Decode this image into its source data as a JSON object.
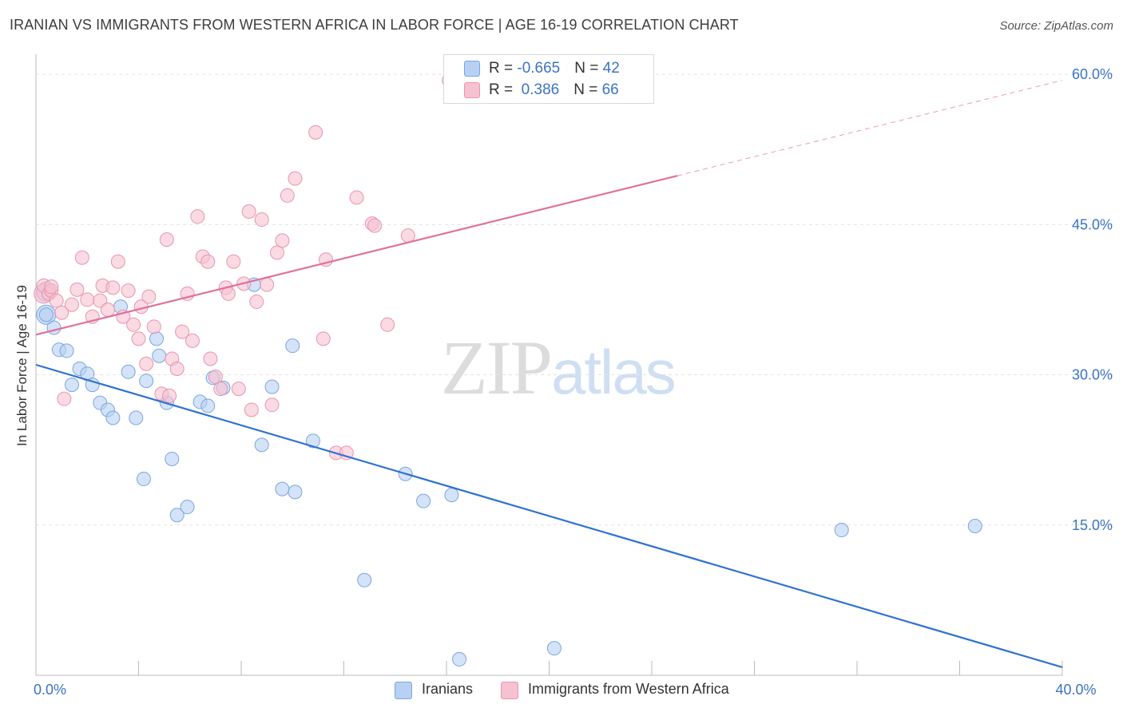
{
  "title": "IRANIAN VS IMMIGRANTS FROM WESTERN AFRICA IN LABOR FORCE | AGE 16-19 CORRELATION CHART",
  "source": "Source: ZipAtlas.com",
  "watermark": {
    "zip": "ZIP",
    "atlas": "atlas"
  },
  "stats": {
    "iranians": {
      "r_label": "R = ",
      "r_value": "-0.665",
      "n_label": "N = ",
      "n_value": "42"
    },
    "western_africa": {
      "r_label": "R = ",
      "r_value": " 0.386",
      "n_label": "N = ",
      "n_value": "66"
    }
  },
  "colors": {
    "blue_fill": "#b8d0f2",
    "blue_stroke": "#7aa6e0",
    "blue_line": "#2f72d2",
    "pink_fill": "#f6c1d1",
    "pink_stroke": "#e896b0",
    "pink_line": "#e0719a",
    "tick_label": "#3b73c4",
    "grid": "#e3e3e3"
  },
  "chart_data": {
    "type": "scatter",
    "ylabel": "In Labor Force | Age 16-19",
    "xlabel": "",
    "xlim": [
      0,
      40
    ],
    "ylim": [
      0,
      62
    ],
    "x_tick_labels": {
      "0": "0.0%",
      "40": "40.0%"
    },
    "x_minor_ticks": [
      0,
      4,
      8,
      12,
      16,
      20,
      24,
      28,
      32,
      36,
      40
    ],
    "y_ticks": [
      {
        "value": 15,
        "label": "15.0%"
      },
      {
        "value": 30,
        "label": "30.0%"
      },
      {
        "value": 45,
        "label": "45.0%"
      },
      {
        "value": 60,
        "label": "60.0%"
      }
    ],
    "grid": true,
    "legend_position": "bottom-center",
    "series": [
      {
        "name": "Iranians",
        "color": "blue",
        "points": [
          [
            0.4,
            36.0
          ],
          [
            0.7,
            34.7
          ],
          [
            0.9,
            32.5
          ],
          [
            1.2,
            32.4
          ],
          [
            1.4,
            29.0
          ],
          [
            1.7,
            30.6
          ],
          [
            2.0,
            30.1
          ],
          [
            2.2,
            29.0
          ],
          [
            2.5,
            27.2
          ],
          [
            2.8,
            26.5
          ],
          [
            3.0,
            25.7
          ],
          [
            3.3,
            36.8
          ],
          [
            3.6,
            30.3
          ],
          [
            3.9,
            25.7
          ],
          [
            4.2,
            19.6
          ],
          [
            4.3,
            29.4
          ],
          [
            4.7,
            33.6
          ],
          [
            4.8,
            31.9
          ],
          [
            5.1,
            27.2
          ],
          [
            5.3,
            21.6
          ],
          [
            5.5,
            16.0
          ],
          [
            5.9,
            16.8
          ],
          [
            6.4,
            27.3
          ],
          [
            6.7,
            26.9
          ],
          [
            6.9,
            29.7
          ],
          [
            7.3,
            28.7
          ],
          [
            8.5,
            39.0
          ],
          [
            8.8,
            23.0
          ],
          [
            9.2,
            28.8
          ],
          [
            9.6,
            18.6
          ],
          [
            10.0,
            32.9
          ],
          [
            10.1,
            18.3
          ],
          [
            10.8,
            23.4
          ],
          [
            12.8,
            9.5
          ],
          [
            14.4,
            20.1
          ],
          [
            15.1,
            17.4
          ],
          [
            16.2,
            18.0
          ],
          [
            16.5,
            1.6
          ],
          [
            20.2,
            2.7
          ],
          [
            31.4,
            14.5
          ],
          [
            36.6,
            14.9
          ]
        ],
        "big_points": [
          [
            0.4,
            38.3
          ],
          [
            0.4,
            36.0
          ]
        ],
        "trend": {
          "x0": 0,
          "y0": 31.0,
          "x1": 40,
          "y1": 0.8,
          "dash_from": null
        }
      },
      {
        "name": "Immigrants from Western Africa",
        "color": "pink",
        "points": [
          [
            0.3,
            38.9
          ],
          [
            0.5,
            38.1
          ],
          [
            0.6,
            38.4
          ],
          [
            0.8,
            37.4
          ],
          [
            1.0,
            36.2
          ],
          [
            1.1,
            27.6
          ],
          [
            1.4,
            37.0
          ],
          [
            1.6,
            38.5
          ],
          [
            1.8,
            41.7
          ],
          [
            2.0,
            37.5
          ],
          [
            2.2,
            35.8
          ],
          [
            2.5,
            37.4
          ],
          [
            2.6,
            38.9
          ],
          [
            2.8,
            36.5
          ],
          [
            3.0,
            38.7
          ],
          [
            3.2,
            41.3
          ],
          [
            3.4,
            35.8
          ],
          [
            3.6,
            38.4
          ],
          [
            3.8,
            35.0
          ],
          [
            4.0,
            33.6
          ],
          [
            4.1,
            36.8
          ],
          [
            4.3,
            31.1
          ],
          [
            4.4,
            37.8
          ],
          [
            4.6,
            34.8
          ],
          [
            4.9,
            28.1
          ],
          [
            5.1,
            43.5
          ],
          [
            5.2,
            27.9
          ],
          [
            5.3,
            31.6
          ],
          [
            5.5,
            30.6
          ],
          [
            5.7,
            34.3
          ],
          [
            5.9,
            38.1
          ],
          [
            6.1,
            33.4
          ],
          [
            6.3,
            45.8
          ],
          [
            6.5,
            41.8
          ],
          [
            6.7,
            41.3
          ],
          [
            6.8,
            31.6
          ],
          [
            7.0,
            29.8
          ],
          [
            7.2,
            28.6
          ],
          [
            7.4,
            38.7
          ],
          [
            7.5,
            38.1
          ],
          [
            7.7,
            41.3
          ],
          [
            7.9,
            28.6
          ],
          [
            8.1,
            39.1
          ],
          [
            8.3,
            46.3
          ],
          [
            8.4,
            26.5
          ],
          [
            8.6,
            37.3
          ],
          [
            8.8,
            45.5
          ],
          [
            9.0,
            39.0
          ],
          [
            9.2,
            27.0
          ],
          [
            9.4,
            42.2
          ],
          [
            9.6,
            43.4
          ],
          [
            9.8,
            47.9
          ],
          [
            10.1,
            49.6
          ],
          [
            10.9,
            54.2
          ],
          [
            11.2,
            33.6
          ],
          [
            11.3,
            41.5
          ],
          [
            11.7,
            22.2
          ],
          [
            12.1,
            22.2
          ],
          [
            12.5,
            47.7
          ],
          [
            13.1,
            45.1
          ],
          [
            13.2,
            44.9
          ],
          [
            13.7,
            35.0
          ],
          [
            14.5,
            43.9
          ],
          [
            16.1,
            59.4
          ],
          [
            22.4,
            59.5
          ],
          [
            0.6,
            38.8
          ]
        ],
        "big_points": [
          [
            0.3,
            38.1
          ]
        ],
        "trend": {
          "x0": 0,
          "y0": 34.0,
          "x1": 40,
          "y1": 59.4,
          "dash_from": 25
        }
      }
    ]
  },
  "legend": {
    "iranians": "Iranians",
    "western_africa": "Immigrants from Western Africa"
  }
}
